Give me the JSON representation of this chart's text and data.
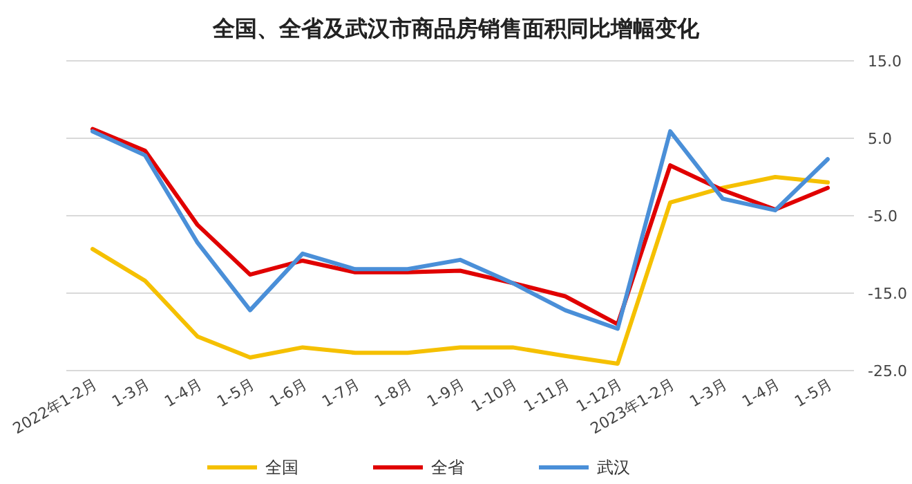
{
  "chart_data": {
    "type": "line",
    "title": "全国、全省及武汉市商品房销售面积同比增幅变化",
    "categories": [
      "2022年1-2月",
      "1-3月",
      "1-4月",
      "1-5月",
      "1-6月",
      "1-7月",
      "1-8月",
      "1-9月",
      "1-10月",
      "1-11月",
      "1-12月",
      "2023年1-2月",
      "1-3月",
      "1-4月",
      "1-5月"
    ],
    "series": [
      {
        "name": "全国",
        "color": "#f5c000",
        "values": [
          -9.3,
          -13.4,
          -20.6,
          -23.3,
          -22.0,
          -22.7,
          -22.7,
          -22.0,
          -22.0,
          -23.1,
          -24.1,
          -3.3,
          -1.4,
          0.0,
          -0.7
        ]
      },
      {
        "name": "全省",
        "color": "#e00000",
        "values": [
          6.2,
          3.4,
          -6.2,
          -12.6,
          -10.8,
          -12.3,
          -12.3,
          -12.1,
          -13.7,
          -15.4,
          -19.0,
          1.5,
          -1.7,
          -4.2,
          -1.4
        ]
      },
      {
        "name": "武汉",
        "color": "#4a8fd8",
        "values": [
          5.9,
          2.8,
          -8.5,
          -17.2,
          -9.9,
          -11.9,
          -11.9,
          -10.7,
          -13.7,
          -17.2,
          -19.6,
          5.9,
          -2.8,
          -4.3,
          2.3
        ]
      }
    ],
    "ylim": [
      -25,
      15
    ],
    "yticks": [
      {
        "value": 15,
        "label": "15.0"
      },
      {
        "value": 5,
        "label": "5.0"
      },
      {
        "value": -5,
        "label": "-5.0"
      },
      {
        "value": -15,
        "label": "-15.0"
      },
      {
        "value": -25,
        "label": "-25.0"
      }
    ],
    "grid": "y",
    "legend": "bottom",
    "marker": "none",
    "line_style": "solid"
  }
}
